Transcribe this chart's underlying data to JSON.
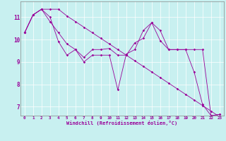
{
  "xlabel": "Windchill (Refroidissement éolien,°C)",
  "bg_color": "#c8f0f0",
  "line_color": "#990099",
  "grid_color": "#ffffff",
  "axis_color": "#888888",
  "xlim": [
    -0.5,
    23.5
  ],
  "ylim": [
    6.6,
    11.7
  ],
  "xticks": [
    0,
    1,
    2,
    3,
    4,
    5,
    6,
    7,
    8,
    9,
    10,
    11,
    12,
    13,
    14,
    15,
    16,
    17,
    18,
    19,
    20,
    21,
    22,
    23
  ],
  "yticks": [
    7,
    8,
    9,
    10,
    11
  ],
  "series": [
    [
      10.3,
      11.1,
      11.35,
      11.0,
      9.9,
      9.3,
      9.55,
      9.0,
      9.3,
      9.3,
      9.3,
      7.75,
      9.35,
      9.55,
      10.4,
      10.75,
      10.4,
      9.55,
      9.55,
      9.55,
      8.55,
      7.1,
      6.6,
      6.65
    ],
    [
      10.3,
      11.1,
      11.35,
      10.8,
      10.3,
      9.8,
      9.55,
      9.2,
      9.55,
      9.55,
      9.6,
      9.3,
      9.3,
      9.85,
      10.05,
      10.75,
      9.95,
      9.55,
      9.55,
      9.55,
      9.55,
      9.55,
      6.6,
      6.65
    ],
    [
      10.3,
      11.1,
      11.35,
      11.35,
      11.35,
      11.05,
      10.8,
      10.55,
      10.3,
      10.05,
      9.8,
      9.55,
      9.3,
      9.05,
      8.8,
      8.55,
      8.3,
      8.05,
      7.8,
      7.55,
      7.3,
      7.05,
      6.8,
      6.55
    ]
  ]
}
